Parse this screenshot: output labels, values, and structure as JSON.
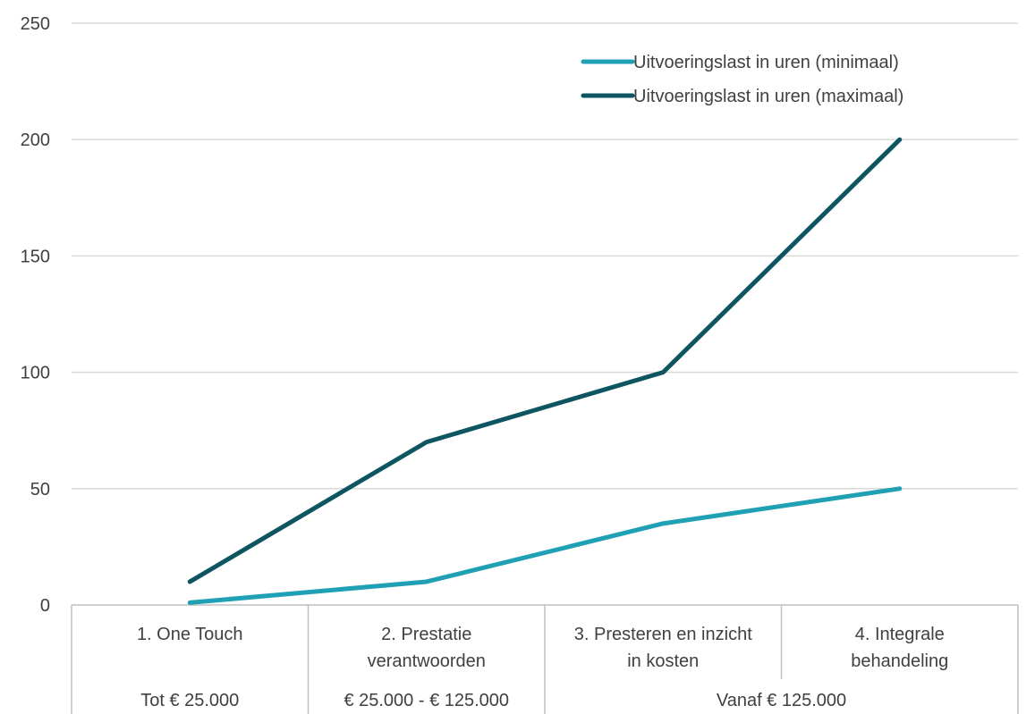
{
  "chart_data": {
    "type": "line",
    "title": "",
    "xlabel": "",
    "ylabel": "",
    "ylim": [
      0,
      250
    ],
    "yticks": [
      0,
      50,
      100,
      150,
      200,
      250
    ],
    "grid": true,
    "legend_position": "top-right",
    "categories": [
      [
        "1. One Touch"
      ],
      [
        "2. Prestatie",
        "verantwoorden"
      ],
      [
        "3. Presteren en inzicht",
        "in kosten"
      ],
      [
        "4. Integrale",
        "behandeling"
      ]
    ],
    "category_groups": [
      {
        "label": "Tot € 25.000",
        "span": [
          0,
          0
        ]
      },
      {
        "label": "€ 25.000 - € 125.000",
        "span": [
          1,
          1
        ]
      },
      {
        "label": "Vanaf € 125.000",
        "span": [
          2,
          3
        ]
      }
    ],
    "series": [
      {
        "name": "Uitvoeringslast in uren (minimaal)",
        "color": "#1fa0b4",
        "values": [
          1,
          10,
          35,
          50
        ]
      },
      {
        "name": "Uitvoeringslast in uren (maximaal)",
        "color": "#0d5560",
        "values": [
          10,
          70,
          100,
          200
        ]
      }
    ]
  }
}
